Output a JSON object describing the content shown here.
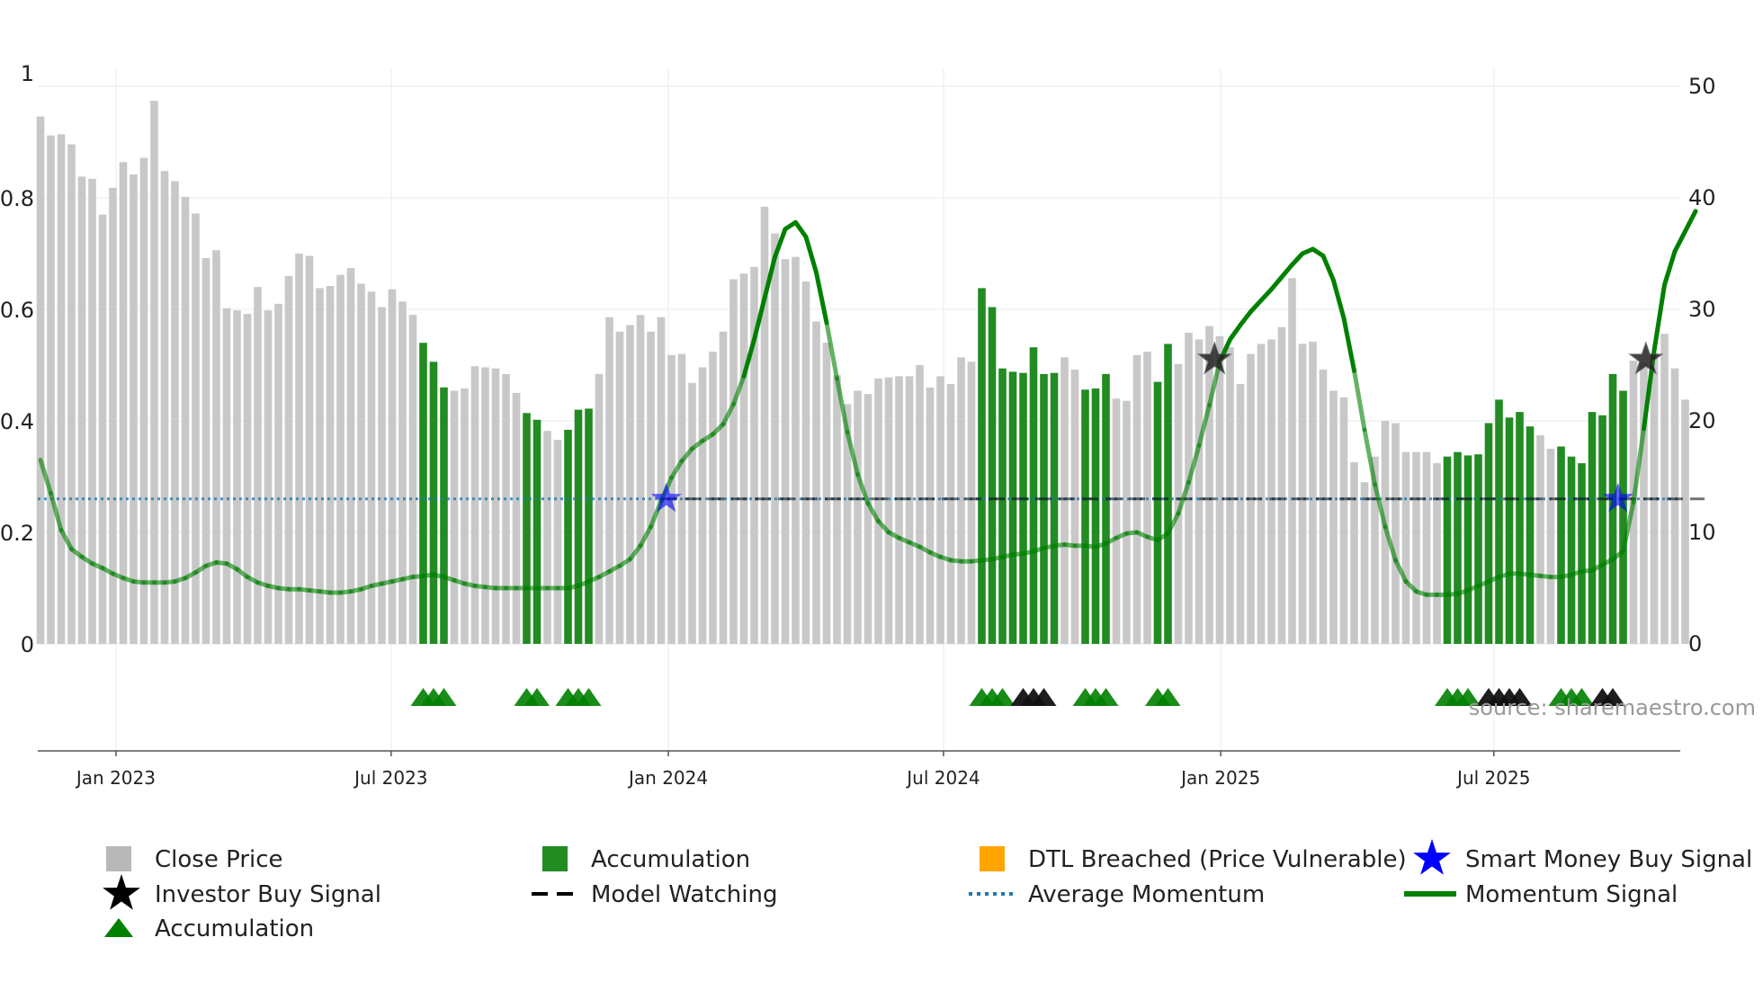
{
  "chart_data": {
    "type": "bar",
    "source_label": "source: sharemaestro.com",
    "left_axis": {
      "range": [
        0,
        1
      ],
      "ticks": [
        0,
        0.2,
        0.4,
        0.6,
        0.8,
        1
      ],
      "tick_labels": [
        "0",
        "0.2",
        "0.4",
        "0.6",
        "0.8",
        "1"
      ]
    },
    "right_axis": {
      "range": [
        0,
        50
      ],
      "ticks": [
        0,
        10,
        20,
        30,
        40,
        50
      ],
      "tick_labels": [
        "0",
        "10",
        "20",
        "30",
        "40",
        "50"
      ]
    },
    "x_axis": {
      "start_week": 0,
      "end_week": 160,
      "ticks": [
        {
          "week": 7.3,
          "label": "Jan 2023"
        },
        {
          "week": 33.9,
          "label": "Jul 2023"
        },
        {
          "week": 60.7,
          "label": "Jan 2024"
        },
        {
          "week": 87.3,
          "label": "Jul 2024"
        },
        {
          "week": 114.1,
          "label": "Jan 2025"
        },
        {
          "week": 140.5,
          "label": "Jul 2025"
        }
      ]
    },
    "colors": {
      "close": "#c8c8c8",
      "accumulation": "#228B22",
      "momentum": "#008000",
      "average": "#1f77b4",
      "watching": "#000000",
      "dtl": "#ffa500",
      "smart": "#0000ff"
    },
    "close_price": [
      47.3,
      45.6,
      45.7,
      44.8,
      41.9,
      41.7,
      38.5,
      40.9,
      43.2,
      42.1,
      43.6,
      48.7,
      42.4,
      41.5,
      40.1,
      38.6,
      34.6,
      35.3,
      30.1,
      29.9,
      29.6,
      32.0,
      29.9,
      30.5,
      33.0,
      35.0,
      34.8,
      31.9,
      32.1,
      33.1,
      33.7,
      32.3,
      31.6,
      30.2,
      31.8,
      30.7,
      29.5,
      27.0,
      25.3,
      23.0,
      22.7,
      22.9,
      24.9,
      24.8,
      24.7,
      24.2,
      22.5,
      20.7,
      20.1,
      19.1,
      18.3,
      19.2,
      21.0,
      21.1,
      24.2,
      29.3,
      28.0,
      28.6,
      29.5,
      28.0,
      29.3,
      25.9,
      26.0,
      23.4,
      24.8,
      26.2,
      28.0,
      32.7,
      33.2,
      33.8,
      39.2,
      36.8,
      34.5,
      34.7,
      32.5,
      28.9,
      27.0,
      24.1,
      21.5,
      22.7,
      22.4,
      23.8,
      23.9,
      24.0,
      24.0,
      25.0,
      23.0,
      24.0,
      23.3,
      25.7,
      25.3,
      31.9,
      30.2,
      24.7,
      24.4,
      24.3,
      26.6,
      24.2,
      24.3,
      25.7,
      24.6,
      22.8,
      22.9,
      24.2,
      22.0,
      21.8,
      25.9,
      26.2,
      23.5,
      26.9,
      25.1,
      27.9,
      27.3,
      28.5,
      27.6,
      26.6,
      23.3,
      26.0,
      26.9,
      27.3,
      28.4,
      32.8,
      26.9,
      27.1,
      24.6,
      22.7,
      22.1,
      16.3,
      14.5,
      16.8,
      20.0,
      19.8,
      17.2,
      17.2,
      17.2,
      16.2,
      16.8,
      17.2,
      16.9,
      17.0,
      19.8,
      21.9,
      20.3,
      20.8,
      19.5,
      18.7,
      17.5,
      17.7,
      16.8,
      16.2,
      20.8,
      20.5,
      24.2,
      22.7,
      25.4,
      25.2,
      26.1,
      27.8,
      24.7,
      21.9
    ],
    "accumulation_weeks": [
      37,
      38,
      39,
      47,
      48,
      51,
      52,
      53,
      91,
      92,
      93,
      94,
      95,
      96,
      97,
      98,
      101,
      102,
      103,
      108,
      109,
      136,
      137,
      138,
      139,
      140,
      141,
      142,
      143,
      144,
      147,
      148,
      149,
      150,
      151,
      152,
      153
    ],
    "momentum": [
      [
        0,
        16.5
      ],
      [
        1,
        13.5
      ],
      [
        2,
        10.2
      ],
      [
        3,
        8.5
      ],
      [
        4,
        7.8
      ],
      [
        5,
        7.2
      ],
      [
        6,
        6.8
      ],
      [
        7,
        6.3
      ],
      [
        8,
        5.9
      ],
      [
        9,
        5.6
      ],
      [
        10,
        5.5
      ],
      [
        11,
        5.5
      ],
      [
        12,
        5.5
      ],
      [
        13,
        5.6
      ],
      [
        14,
        5.9
      ],
      [
        15,
        6.4
      ],
      [
        16,
        7.0
      ],
      [
        17,
        7.3
      ],
      [
        18,
        7.2
      ],
      [
        19,
        6.7
      ],
      [
        20,
        6.0
      ],
      [
        21,
        5.5
      ],
      [
        22,
        5.2
      ],
      [
        23,
        5.0
      ],
      [
        24,
        4.9
      ],
      [
        25,
        4.9
      ],
      [
        26,
        4.8
      ],
      [
        27,
        4.7
      ],
      [
        28,
        4.6
      ],
      [
        29,
        4.6
      ],
      [
        30,
        4.7
      ],
      [
        31,
        4.9
      ],
      [
        32,
        5.2
      ],
      [
        33,
        5.4
      ],
      [
        34,
        5.6
      ],
      [
        35,
        5.8
      ],
      [
        36,
        6.0
      ],
      [
        37,
        6.1
      ],
      [
        38,
        6.2
      ],
      [
        39,
        6.0
      ],
      [
        40,
        5.7
      ],
      [
        41,
        5.4
      ],
      [
        42,
        5.2
      ],
      [
        43,
        5.1
      ],
      [
        44,
        5.0
      ],
      [
        45,
        5.0
      ],
      [
        46,
        5.0
      ],
      [
        47,
        5.0
      ],
      [
        48,
        5.0
      ],
      [
        49,
        5.0
      ],
      [
        50,
        5.0
      ],
      [
        51,
        5.0
      ],
      [
        52,
        5.2
      ],
      [
        53,
        5.6
      ],
      [
        54,
        6.0
      ],
      [
        55,
        6.5
      ],
      [
        56,
        7.0
      ],
      [
        57,
        7.6
      ],
      [
        58,
        8.8
      ],
      [
        59,
        10.5
      ],
      [
        60,
        12.8
      ],
      [
        61,
        14.9
      ],
      [
        62,
        16.4
      ],
      [
        63,
        17.5
      ],
      [
        64,
        18.2
      ],
      [
        65,
        18.8
      ],
      [
        66,
        19.7
      ],
      [
        67,
        21.5
      ],
      [
        68,
        24.0
      ],
      [
        69,
        27.3
      ],
      [
        70,
        31.0
      ],
      [
        71,
        34.7
      ],
      [
        72,
        37.2
      ],
      [
        73,
        37.8
      ],
      [
        74,
        36.5
      ],
      [
        75,
        33.3
      ],
      [
        76,
        28.8
      ],
      [
        77,
        23.8
      ],
      [
        78,
        19.0
      ],
      [
        79,
        15.2
      ],
      [
        80,
        12.6
      ],
      [
        81,
        11.0
      ],
      [
        82,
        10.0
      ],
      [
        83,
        9.5
      ],
      [
        84,
        9.1
      ],
      [
        85,
        8.7
      ],
      [
        86,
        8.2
      ],
      [
        87,
        7.8
      ],
      [
        88,
        7.5
      ],
      [
        89,
        7.4
      ],
      [
        90,
        7.4
      ],
      [
        91,
        7.5
      ],
      [
        92,
        7.6
      ],
      [
        93,
        7.8
      ],
      [
        94,
        8.0
      ],
      [
        95,
        8.1
      ],
      [
        96,
        8.3
      ],
      [
        97,
        8.6
      ],
      [
        98,
        8.8
      ],
      [
        99,
        8.9
      ],
      [
        100,
        8.8
      ],
      [
        101,
        8.8
      ],
      [
        102,
        8.7
      ],
      [
        103,
        9.0
      ],
      [
        104,
        9.5
      ],
      [
        105,
        9.9
      ],
      [
        106,
        10.0
      ],
      [
        107,
        9.6
      ],
      [
        108,
        9.3
      ],
      [
        109,
        9.9
      ],
      [
        110,
        11.7
      ],
      [
        111,
        14.5
      ],
      [
        112,
        17.8
      ],
      [
        113,
        21.4
      ],
      [
        114,
        25.3
      ],
      [
        115,
        27.3
      ],
      [
        116,
        28.6
      ],
      [
        117,
        29.8
      ],
      [
        118,
        30.8
      ],
      [
        119,
        31.8
      ],
      [
        120,
        32.9
      ],
      [
        121,
        34.0
      ],
      [
        122,
        35.0
      ],
      [
        123,
        35.4
      ],
      [
        124,
        34.8
      ],
      [
        125,
        32.6
      ],
      [
        126,
        29.2
      ],
      [
        127,
        24.5
      ],
      [
        128,
        19.2
      ],
      [
        129,
        14.3
      ],
      [
        130,
        10.5
      ],
      [
        131,
        7.5
      ],
      [
        132,
        5.6
      ],
      [
        133,
        4.7
      ],
      [
        134,
        4.4
      ],
      [
        135,
        4.4
      ],
      [
        136,
        4.4
      ],
      [
        137,
        4.5
      ],
      [
        138,
        4.8
      ],
      [
        139,
        5.2
      ],
      [
        140,
        5.6
      ],
      [
        141,
        6.0
      ],
      [
        142,
        6.3
      ],
      [
        143,
        6.3
      ],
      [
        144,
        6.2
      ],
      [
        145,
        6.1
      ],
      [
        146,
        6.0
      ],
      [
        147,
        6.0
      ],
      [
        148,
        6.2
      ],
      [
        149,
        6.5
      ],
      [
        150,
        6.6
      ],
      [
        151,
        7.1
      ],
      [
        152,
        7.6
      ],
      [
        153,
        8.3
      ],
      [
        154,
        12.7
      ],
      [
        155,
        19.3
      ],
      [
        156,
        26.3
      ],
      [
        157,
        32.2
      ],
      [
        158,
        35.2
      ],
      [
        159,
        37.0
      ],
      [
        160,
        38.8
      ]
    ],
    "average_momentum": 13.0,
    "model_watching": {
      "start_week": 60,
      "end_week": 160,
      "value": 13.0
    },
    "investor_buy_signals": [
      [
        113.5,
        25.5
      ],
      [
        155.2,
        25.5
      ]
    ],
    "smart_money_signals": [
      [
        60.5,
        13.0
      ],
      [
        152.5,
        13.0
      ]
    ],
    "accumulation_markers": [
      {
        "weeks": [
          37,
          38,
          39
        ],
        "dark": false
      },
      {
        "weeks": [
          47,
          48
        ],
        "dark": false
      },
      {
        "weeks": [
          51,
          52,
          53
        ],
        "dark": false
      },
      {
        "weeks": [
          91,
          92,
          93
        ],
        "dark": false
      },
      {
        "weeks": [
          95,
          96,
          97
        ],
        "dark": true
      },
      {
        "weeks": [
          101,
          102,
          103
        ],
        "dark": false
      },
      {
        "weeks": [
          108,
          109
        ],
        "dark": false
      },
      {
        "weeks": [
          136,
          137,
          138
        ],
        "dark": false
      },
      {
        "weeks": [
          140,
          141,
          142,
          143
        ],
        "dark": true
      },
      {
        "weeks": [
          147,
          148,
          149
        ],
        "dark": false
      },
      {
        "weeks": [
          151,
          152
        ],
        "dark": true
      }
    ]
  },
  "legend": [
    {
      "key": "close",
      "icon": "square",
      "color": "#b8b8b8",
      "label": "Close Price"
    },
    {
      "key": "accumulation_bar",
      "icon": "square",
      "color": "#228B22",
      "label": "Accumulation"
    },
    {
      "key": "dtl",
      "icon": "square",
      "color": "#ffa500",
      "label": "DTL Breached (Price Vulnerable)"
    },
    {
      "key": "smart",
      "icon": "star",
      "color": "#0000ff",
      "label": "Smart Money Buy Signal"
    },
    {
      "key": "investor",
      "icon": "star",
      "color": "#000000",
      "label": "Investor Buy Signal"
    },
    {
      "key": "watching",
      "icon": "dash",
      "color": "#000000",
      "label": "Model Watching"
    },
    {
      "key": "average",
      "icon": "dot",
      "color": "#1f77b4",
      "label": "Average Momentum"
    },
    {
      "key": "momentum",
      "icon": "line",
      "color": "#008000",
      "label": "Momentum Signal"
    },
    {
      "key": "accumulation_marker",
      "icon": "triangle",
      "color": "#008000",
      "label": "Accumulation"
    }
  ]
}
